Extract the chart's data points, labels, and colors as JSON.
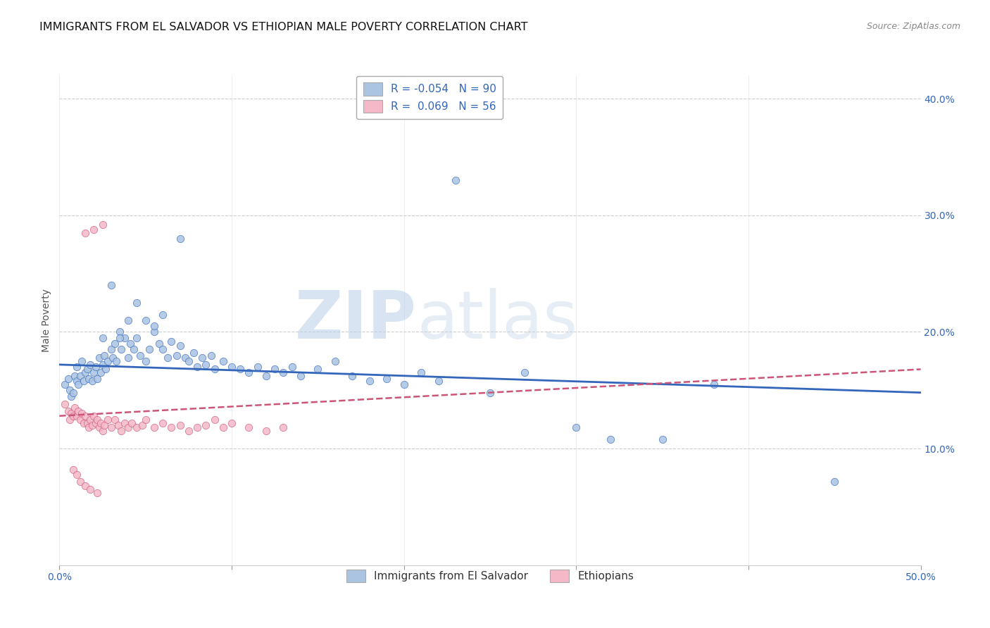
{
  "title": "IMMIGRANTS FROM EL SALVADOR VS ETHIOPIAN MALE POVERTY CORRELATION CHART",
  "source": "Source: ZipAtlas.com",
  "ylabel": "Male Poverty",
  "xlim": [
    0.0,
    0.5
  ],
  "ylim": [
    0.0,
    0.42
  ],
  "xticks": [
    0.0,
    0.1,
    0.2,
    0.3,
    0.4,
    0.5
  ],
  "yticks": [
    0.1,
    0.2,
    0.3,
    0.4
  ],
  "xticklabels": [
    "0.0%",
    "",
    "",
    "",
    "",
    "50.0%"
  ],
  "yticklabels": [
    "10.0%",
    "20.0%",
    "30.0%",
    "40.0%"
  ],
  "legend_label1": "Immigrants from El Salvador",
  "legend_label2": "Ethiopians",
  "R1": -0.054,
  "N1": 90,
  "R2": 0.069,
  "N2": 56,
  "color1": "#aac4e2",
  "color2": "#f4b8c8",
  "line_color1": "#3366bb",
  "line_color2": "#cc5577",
  "background_color": "#ffffff",
  "grid_color": "#cccccc",
  "watermark_zip": "ZIP",
  "watermark_atlas": "atlas",
  "title_fontsize": 11.5,
  "axis_label_fontsize": 10,
  "tick_fontsize": 10,
  "scatter_size": 55,
  "blue_x": [
    0.003,
    0.005,
    0.006,
    0.007,
    0.008,
    0.009,
    0.01,
    0.01,
    0.011,
    0.012,
    0.013,
    0.014,
    0.015,
    0.016,
    0.017,
    0.018,
    0.019,
    0.02,
    0.021,
    0.022,
    0.023,
    0.024,
    0.025,
    0.026,
    0.027,
    0.028,
    0.03,
    0.031,
    0.032,
    0.033,
    0.035,
    0.036,
    0.038,
    0.04,
    0.041,
    0.043,
    0.045,
    0.047,
    0.05,
    0.052,
    0.055,
    0.058,
    0.06,
    0.063,
    0.065,
    0.068,
    0.07,
    0.073,
    0.075,
    0.078,
    0.08,
    0.083,
    0.085,
    0.088,
    0.09,
    0.095,
    0.1,
    0.105,
    0.11,
    0.115,
    0.12,
    0.125,
    0.13,
    0.135,
    0.14,
    0.15,
    0.16,
    0.17,
    0.18,
    0.19,
    0.2,
    0.21,
    0.22,
    0.23,
    0.25,
    0.27,
    0.3,
    0.32,
    0.35,
    0.38,
    0.03,
    0.04,
    0.045,
    0.05,
    0.055,
    0.06,
    0.025,
    0.035,
    0.07,
    0.45
  ],
  "blue_y": [
    0.155,
    0.16,
    0.15,
    0.145,
    0.148,
    0.162,
    0.158,
    0.17,
    0.155,
    0.162,
    0.175,
    0.158,
    0.165,
    0.168,
    0.16,
    0.172,
    0.158,
    0.165,
    0.17,
    0.16,
    0.178,
    0.165,
    0.172,
    0.18,
    0.168,
    0.175,
    0.185,
    0.178,
    0.19,
    0.175,
    0.2,
    0.185,
    0.195,
    0.178,
    0.19,
    0.185,
    0.195,
    0.18,
    0.175,
    0.185,
    0.2,
    0.19,
    0.185,
    0.178,
    0.192,
    0.18,
    0.188,
    0.178,
    0.175,
    0.182,
    0.17,
    0.178,
    0.172,
    0.18,
    0.168,
    0.175,
    0.17,
    0.168,
    0.165,
    0.17,
    0.162,
    0.168,
    0.165,
    0.17,
    0.162,
    0.168,
    0.175,
    0.162,
    0.158,
    0.16,
    0.155,
    0.165,
    0.158,
    0.33,
    0.148,
    0.165,
    0.118,
    0.108,
    0.108,
    0.155,
    0.24,
    0.21,
    0.225,
    0.21,
    0.205,
    0.215,
    0.195,
    0.195,
    0.28,
    0.072
  ],
  "pink_x": [
    0.003,
    0.005,
    0.006,
    0.007,
    0.008,
    0.009,
    0.01,
    0.011,
    0.012,
    0.013,
    0.014,
    0.015,
    0.016,
    0.017,
    0.018,
    0.019,
    0.02,
    0.021,
    0.022,
    0.023,
    0.024,
    0.025,
    0.026,
    0.028,
    0.03,
    0.032,
    0.034,
    0.036,
    0.038,
    0.04,
    0.042,
    0.045,
    0.048,
    0.05,
    0.055,
    0.06,
    0.065,
    0.07,
    0.075,
    0.08,
    0.085,
    0.09,
    0.095,
    0.1,
    0.11,
    0.12,
    0.13,
    0.015,
    0.02,
    0.025,
    0.008,
    0.01,
    0.012,
    0.015,
    0.018,
    0.022
  ],
  "pink_y": [
    0.138,
    0.132,
    0.125,
    0.13,
    0.128,
    0.135,
    0.128,
    0.132,
    0.125,
    0.13,
    0.122,
    0.128,
    0.122,
    0.118,
    0.125,
    0.12,
    0.128,
    0.122,
    0.125,
    0.118,
    0.122,
    0.115,
    0.12,
    0.125,
    0.118,
    0.125,
    0.12,
    0.115,
    0.122,
    0.118,
    0.122,
    0.118,
    0.12,
    0.125,
    0.118,
    0.122,
    0.118,
    0.12,
    0.115,
    0.118,
    0.12,
    0.125,
    0.118,
    0.122,
    0.118,
    0.115,
    0.118,
    0.285,
    0.288,
    0.292,
    0.082,
    0.078,
    0.072,
    0.068,
    0.065,
    0.062
  ],
  "blue_line_x0": 0.0,
  "blue_line_x1": 0.5,
  "blue_line_y0": 0.172,
  "blue_line_y1": 0.148,
  "pink_line_x0": 0.0,
  "pink_line_x1": 0.5,
  "pink_line_y0": 0.128,
  "pink_line_y1": 0.168
}
